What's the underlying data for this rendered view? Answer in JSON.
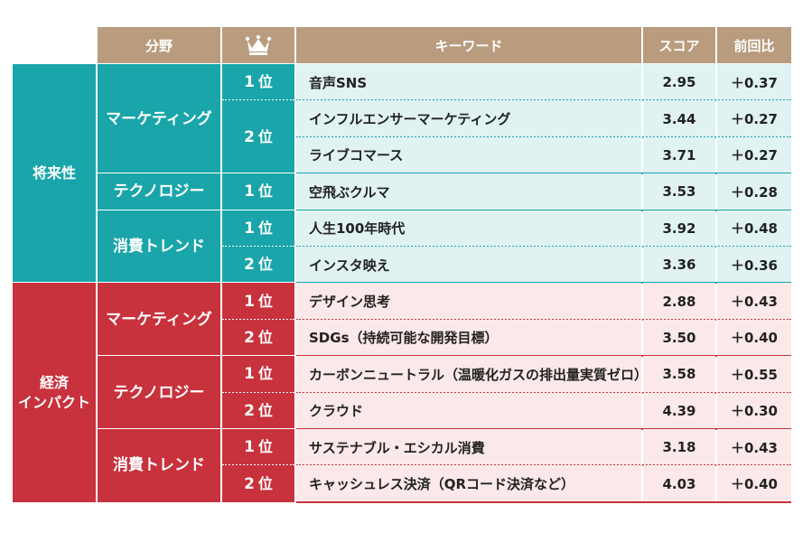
{
  "header": {
    "category": "分野",
    "rank_icon": "crown-icon",
    "keyword": "キーワード",
    "score": "スコア",
    "change": "前回比"
  },
  "sections": [
    {
      "name": "将来性",
      "color": "#19a5a9",
      "light": "#e1f2f3",
      "groups": [
        {
          "name": "マーケティング",
          "ranks": [
            {
              "rank_num": "1",
              "rank_suffix": "位",
              "rows": [
                {
                  "keyword": "音声SNS",
                  "score": "2.95",
                  "change": "+0.37"
                }
              ]
            },
            {
              "rank_num": "2",
              "rank_suffix": "位",
              "rows": [
                {
                  "keyword": "インフルエンサーマーケティング",
                  "score": "3.44",
                  "change": "+0.27"
                },
                {
                  "keyword": "ライブコマース",
                  "score": "3.71",
                  "change": "+0.27"
                }
              ]
            }
          ]
        },
        {
          "name": "テクノロジー",
          "ranks": [
            {
              "rank_num": "1",
              "rank_suffix": "位",
              "rows": [
                {
                  "keyword": "空飛ぶクルマ",
                  "score": "3.53",
                  "change": "+0.28"
                }
              ]
            }
          ]
        },
        {
          "name": "消費トレンド",
          "ranks": [
            {
              "rank_num": "1",
              "rank_suffix": "位",
              "rows": [
                {
                  "keyword": "人生100年時代",
                  "score": "3.92",
                  "change": "+0.48"
                }
              ]
            },
            {
              "rank_num": "2",
              "rank_suffix": "位",
              "rows": [
                {
                  "keyword": "インスタ映え",
                  "score": "3.36",
                  "change": "+0.36"
                }
              ]
            }
          ]
        }
      ]
    },
    {
      "name": "経済\nインパクト",
      "color": "#c8323c",
      "light": "#fbe8e8",
      "groups": [
        {
          "name": "マーケティング",
          "ranks": [
            {
              "rank_num": "1",
              "rank_suffix": "位",
              "rows": [
                {
                  "keyword": "デザイン思考",
                  "score": "2.88",
                  "change": "+0.43"
                }
              ]
            },
            {
              "rank_num": "2",
              "rank_suffix": "位",
              "rows": [
                {
                  "keyword": "SDGs（持続可能な開発目標）",
                  "score": "3.50",
                  "change": "+0.40"
                }
              ]
            }
          ]
        },
        {
          "name": "テクノロジー",
          "ranks": [
            {
              "rank_num": "1",
              "rank_suffix": "位",
              "rows": [
                {
                  "keyword": "カーボンニュートラル（温暖化ガスの排出量実質ゼロ）",
                  "score": "3.58",
                  "change": "+0.55"
                }
              ]
            },
            {
              "rank_num": "2",
              "rank_suffix": "位",
              "rows": [
                {
                  "keyword": "クラウド",
                  "score": "4.39",
                  "change": "+0.30"
                }
              ]
            }
          ]
        },
        {
          "name": "消費トレンド",
          "ranks": [
            {
              "rank_num": "1",
              "rank_suffix": "位",
              "rows": [
                {
                  "keyword": "サステナブル・エシカル消費",
                  "score": "3.18",
                  "change": "+0.43"
                }
              ]
            },
            {
              "rank_num": "2",
              "rank_suffix": "位",
              "rows": [
                {
                  "keyword": "キャッシュレス決済（QRコード決済など）",
                  "score": "4.03",
                  "change": "+0.40"
                }
              ]
            }
          ]
        }
      ]
    }
  ]
}
